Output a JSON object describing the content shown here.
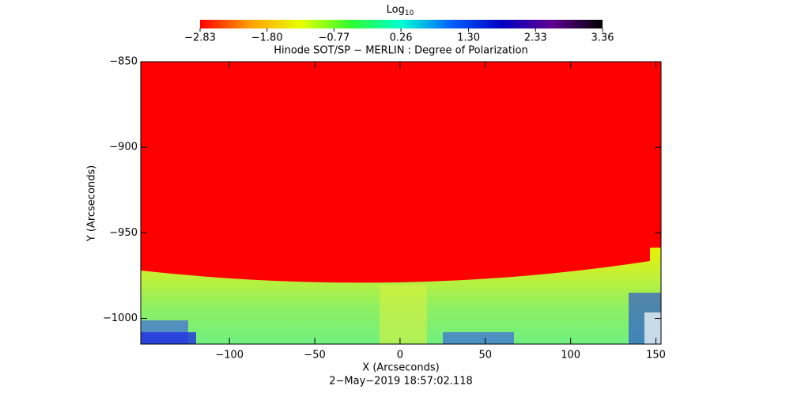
{
  "chart_data": {
    "type": "image",
    "title": "Hinode SOT/SP − MERLIN : Degree of Polarization",
    "x_label": "X (Arcseconds)",
    "y_label": "Y (Arcseconds)",
    "date": "2−May−2019 18:57:02.118",
    "xlim": [
      -152,
      153
    ],
    "xticks": [
      {
        "value": -100,
        "label": "−100"
      },
      {
        "value": -50,
        "label": "−50"
      },
      0,
      50,
      100,
      150
    ],
    "ylim": [
      -1015,
      -850
    ],
    "yticks": [
      {
        "value": -1000,
        "label": "−1000"
      },
      {
        "value": -950,
        "label": "−950"
      },
      {
        "value": -900,
        "label": "−900"
      },
      {
        "value": -850,
        "label": "−850"
      }
    ],
    "colorbar": {
      "label": "Log",
      "label_subscript": "10",
      "clim": [
        -2.83,
        3.36
      ],
      "colors": [
        "#ff0000",
        "#ffa000",
        "#e8ff00",
        "#30ff30",
        "#00ffd0",
        "#0060ff",
        "#0000c0",
        "#600090",
        "#000000"
      ],
      "ticks": [
        {
          "value": -2.83,
          "label": "−2.83"
        },
        {
          "value": -1.8,
          "label": "−1.80"
        },
        {
          "value": -0.77,
          "label": "−0.77"
        },
        0.26,
        {
          "value": 1.3,
          "label": "1.30"
        },
        2.33,
        3.36
      ]
    }
  }
}
